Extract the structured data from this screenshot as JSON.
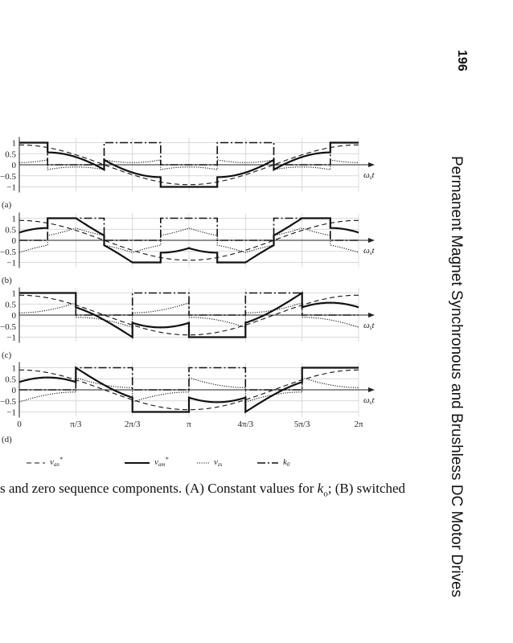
{
  "page_number": "196",
  "running_title": "Permanent Magnet Synchronous and Brushless DC Motor Drives",
  "caption": {
    "before": "s and zero sequence components. (A) Constant values for ",
    "k": "k",
    "k_sub": "o",
    "after": "; (B) switched"
  },
  "chart_data": {
    "type": "line",
    "xlabel": "ω_s t",
    "xlabel_main": "ω",
    "xlabel_sub": "s",
    "xlabel_t": "t",
    "xlim": [
      0,
      6.2832
    ],
    "ylim": [
      -1,
      1
    ],
    "grid": true,
    "x_ticks": [
      "0",
      "π/3",
      "2π/3",
      "π",
      "4π/3",
      "5π/3",
      "2π"
    ],
    "y_ticks": [
      "1",
      "0.5",
      "0",
      "−0.5",
      "−1"
    ],
    "y_tick_values": [
      1,
      0.5,
      0,
      -0.5,
      -1
    ],
    "modulation_amplitude": 0.9,
    "legend": [
      {
        "name": "v_an*",
        "main": "v",
        "sub": "an",
        "sup": "*",
        "style": "dashed"
      },
      {
        "name": "v_am*",
        "main": "v",
        "sub": "am",
        "sup": "*",
        "style": "solid"
      },
      {
        "name": "v_zs",
        "main": "v",
        "sub": "zs",
        "sup": "",
        "style": "dotted"
      },
      {
        "name": "k_0",
        "main": "k",
        "sub": "0",
        "sup": "",
        "style": "dashdot"
      }
    ],
    "legend_position": "bottom",
    "panels": [
      {
        "label": "(a)",
        "k0_segments_deg": [
          [
            0,
            30,
            1
          ],
          [
            30,
            90,
            0
          ],
          [
            90,
            150,
            1
          ],
          [
            150,
            210,
            0
          ],
          [
            210,
            270,
            1
          ],
          [
            270,
            330,
            0
          ],
          [
            330,
            360,
            1
          ]
        ]
      },
      {
        "label": "(b)",
        "k0_segments_deg": [
          [
            0,
            30,
            0
          ],
          [
            30,
            90,
            1
          ],
          [
            90,
            150,
            0
          ],
          [
            150,
            210,
            1
          ],
          [
            210,
            270,
            0
          ],
          [
            270,
            330,
            1
          ],
          [
            330,
            360,
            0
          ]
        ]
      },
      {
        "label": "(c)",
        "k0_segments_deg": [
          [
            0,
            60,
            1
          ],
          [
            60,
            120,
            0
          ],
          [
            120,
            180,
            1
          ],
          [
            180,
            240,
            0
          ],
          [
            240,
            300,
            1
          ],
          [
            300,
            360,
            0
          ]
        ]
      },
      {
        "label": "(d)",
        "k0_segments_deg": [
          [
            0,
            60,
            0
          ],
          [
            60,
            120,
            1
          ],
          [
            120,
            180,
            0
          ],
          [
            180,
            240,
            1
          ],
          [
            240,
            300,
            0
          ],
          [
            300,
            360,
            1
          ]
        ]
      }
    ]
  }
}
